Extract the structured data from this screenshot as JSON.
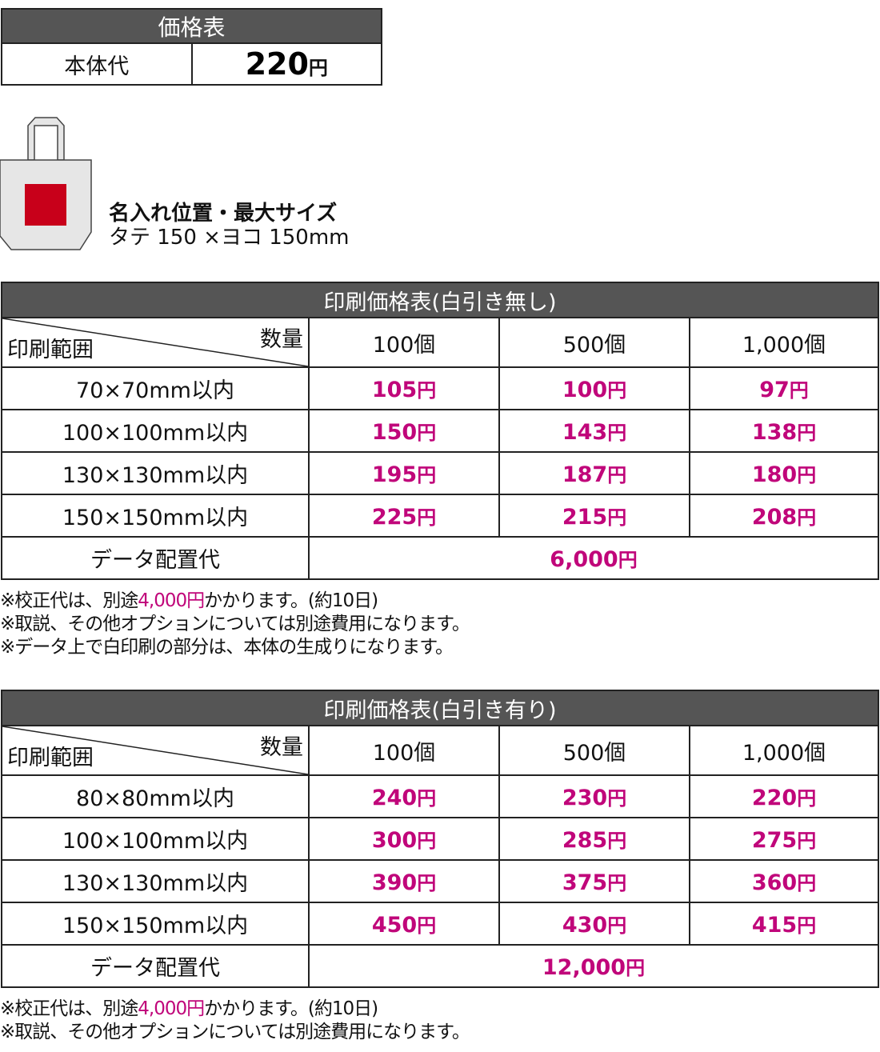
{
  "base_table": {
    "title": "価格表",
    "label": "本体代",
    "price": "220",
    "yen": "円"
  },
  "placement": {
    "title": "名入れ位置・最大サイズ",
    "size": "タテ 150 ×ヨコ 150mm",
    "colors": {
      "bag": "#e6e6e6",
      "print_area": "#c8001a"
    }
  },
  "accent_color": "#c0067a",
  "tables": [
    {
      "title": "印刷価格表(白引き無し)",
      "qty_label": "数量",
      "range_label": "印刷範囲",
      "quantities": [
        "100個",
        "500個",
        "1,000個"
      ],
      "rows": [
        {
          "size": "70×70mm以内",
          "prices": [
            "105",
            "100",
            "97"
          ]
        },
        {
          "size": "100×100mm以内",
          "prices": [
            "150",
            "143",
            "138"
          ]
        },
        {
          "size": "130×130mm以内",
          "prices": [
            "195",
            "187",
            "180"
          ]
        },
        {
          "size": "150×150mm以内",
          "prices": [
            "225",
            "215",
            "208"
          ]
        }
      ],
      "setup_label": "データ配置代",
      "setup_price": "6,000",
      "notes": [
        {
          "pre": "※校正代は、別途",
          "hl": "4,000円",
          "post": "かかります。(約10日)"
        },
        {
          "pre": "※取説、その他オプションについては別途費用になります。",
          "hl": "",
          "post": ""
        },
        {
          "pre": "※データ上で白印刷の部分は、本体の生成りになります。",
          "hl": "",
          "post": ""
        }
      ]
    },
    {
      "title": "印刷価格表(白引き有り)",
      "qty_label": "数量",
      "range_label": "印刷範囲",
      "quantities": [
        "100個",
        "500個",
        "1,000個"
      ],
      "rows": [
        {
          "size": "80×80mm以内",
          "prices": [
            "240",
            "230",
            "220"
          ]
        },
        {
          "size": "100×100mm以内",
          "prices": [
            "300",
            "285",
            "275"
          ]
        },
        {
          "size": "130×130mm以内",
          "prices": [
            "390",
            "375",
            "360"
          ]
        },
        {
          "size": "150×150mm以内",
          "prices": [
            "450",
            "430",
            "415"
          ]
        }
      ],
      "setup_label": "データ配置代",
      "setup_price": "12,000",
      "notes": [
        {
          "pre": "※校正代は、別途",
          "hl": "4,000円",
          "post": "かかります。(約10日)"
        },
        {
          "pre": "※取説、その他オプションについては別途費用になります。",
          "hl": "",
          "post": ""
        }
      ]
    }
  ],
  "yen": "円"
}
